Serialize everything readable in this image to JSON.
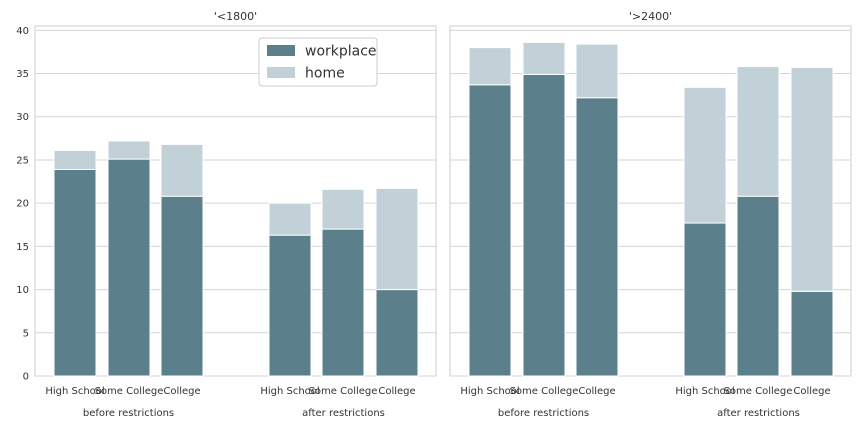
{
  "chart_data": {
    "type": "bar",
    "stacked": true,
    "ylim": [
      0,
      40.5
    ],
    "yticks": [
      0,
      5,
      10,
      15,
      20,
      25,
      30,
      35,
      40
    ],
    "grid": true,
    "legend": {
      "placement": "top-center of left panel",
      "entries": [
        {
          "name": "workplace",
          "color": "#5c7f8c"
        },
        {
          "name": "home",
          "color": "#c2d1d8"
        }
      ]
    },
    "groups": [
      "before restrictions",
      "after restrictions"
    ],
    "categories": [
      "High School",
      "Some College",
      "College"
    ],
    "panels": [
      {
        "title": "'<1800'",
        "series": [
          {
            "name": "workplace",
            "values": [
              [
                23.9,
                25.1,
                20.8
              ],
              [
                16.3,
                17.0,
                10.0
              ]
            ]
          },
          {
            "name": "home",
            "values": [
              [
                2.2,
                2.1,
                6.0
              ],
              [
                3.7,
                4.6,
                11.7
              ]
            ]
          }
        ]
      },
      {
        "title": "'>2400'",
        "series": [
          {
            "name": "workplace",
            "values": [
              [
                33.7,
                34.9,
                32.2
              ],
              [
                17.7,
                20.8,
                9.8
              ]
            ]
          },
          {
            "name": "home",
            "values": [
              [
                4.3,
                3.7,
                6.2
              ],
              [
                15.7,
                15.0,
                25.9
              ]
            ]
          }
        ]
      }
    ]
  }
}
